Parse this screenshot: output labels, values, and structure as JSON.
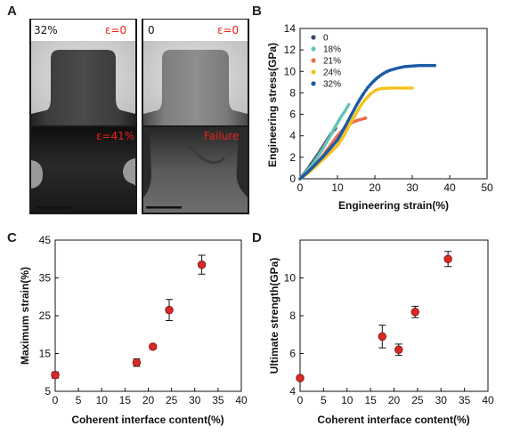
{
  "panel_labels": {
    "a": "A",
    "b": "B",
    "c": "C",
    "d": "D"
  },
  "tem": {
    "top_left_content": "32%",
    "top_left_strain": "ε=0",
    "top_right_content": "0",
    "top_right_strain": "ε=0",
    "bottom_left_strain": "ε=41%",
    "bottom_right_status": "Failure"
  },
  "colors": {
    "0": "#3b4a6b",
    "18": "#66c2b8",
    "21": "#ee6a4c",
    "24": "#f5c21b",
    "32": "#1c5aa3",
    "marker": "#d72b28",
    "tem_label": "#e8231b"
  },
  "chart_data": [
    {
      "type": "scatter",
      "panel": "B",
      "xlabel": "Engineering strain(%)",
      "ylabel": "Engineering stress(GPa)",
      "xlim": [
        0,
        50
      ],
      "ylim": [
        0,
        14
      ],
      "xticks": [
        0,
        10,
        20,
        30,
        40,
        50
      ],
      "yticks": [
        0,
        2,
        4,
        6,
        8,
        10,
        12,
        14
      ],
      "legend_position": "top-left",
      "series": [
        {
          "name": "0",
          "color_key": "0",
          "points": [
            [
              0,
              0
            ],
            [
              1,
              0.45
            ],
            [
              2,
              0.9
            ],
            [
              3,
              1.4
            ],
            [
              4,
              1.9
            ],
            [
              5,
              2.4
            ],
            [
              6,
              2.95
            ],
            [
              7,
              3.5
            ],
            [
              8,
              4.05
            ],
            [
              9,
              4.5
            ],
            [
              9.5,
              4.7
            ]
          ]
        },
        {
          "name": "18%",
          "color_key": "18",
          "points": [
            [
              0,
              0
            ],
            [
              1,
              0.4
            ],
            [
              2,
              0.8
            ],
            [
              3,
              1.2
            ],
            [
              4,
              1.7
            ],
            [
              5,
              2.2
            ],
            [
              6,
              2.75
            ],
            [
              7,
              3.35
            ],
            [
              8,
              3.95
            ],
            [
              9,
              4.6
            ],
            [
              10,
              5.2
            ],
            [
              11,
              5.8
            ],
            [
              12,
              6.3
            ],
            [
              12.5,
              6.6
            ],
            [
              13,
              6.9
            ]
          ]
        },
        {
          "name": "21%",
          "color_key": "21",
          "points": [
            [
              0,
              0
            ],
            [
              1,
              0.3
            ],
            [
              2,
              0.6
            ],
            [
              3,
              0.9
            ],
            [
              4,
              1.3
            ],
            [
              5,
              1.7
            ],
            [
              6,
              2.1
            ],
            [
              7,
              2.6
            ],
            [
              8,
              3.05
            ],
            [
              9,
              3.55
            ],
            [
              10,
              4.0
            ],
            [
              11,
              4.4
            ],
            [
              12,
              4.75
            ],
            [
              13,
              5.0
            ],
            [
              14,
              5.25
            ],
            [
              15,
              5.4
            ],
            [
              16,
              5.5
            ],
            [
              17,
              5.6
            ],
            [
              17.5,
              5.65
            ]
          ]
        },
        {
          "name": "24%",
          "color_key": "24",
          "points": [
            [
              0,
              0
            ],
            [
              2,
              0.5
            ],
            [
              4,
              1.1
            ],
            [
              6,
              1.75
            ],
            [
              8,
              2.4
            ],
            [
              10,
              3.1
            ],
            [
              11,
              3.6
            ],
            [
              12,
              4.2
            ],
            [
              13,
              4.9
            ],
            [
              14,
              5.5
            ],
            [
              15,
              6.1
            ],
            [
              16,
              6.7
            ],
            [
              17,
              7.2
            ],
            [
              18,
              7.6
            ],
            [
              19,
              7.95
            ],
            [
              20,
              8.2
            ],
            [
              21,
              8.35
            ],
            [
              22,
              8.4
            ],
            [
              24,
              8.45
            ],
            [
              26,
              8.45
            ],
            [
              28,
              8.45
            ],
            [
              30,
              8.45
            ]
          ]
        },
        {
          "name": "32%",
          "color_key": "32",
          "points": [
            [
              0,
              0
            ],
            [
              2,
              0.6
            ],
            [
              4,
              1.3
            ],
            [
              6,
              2.0
            ],
            [
              8,
              2.8
            ],
            [
              10,
              3.6
            ],
            [
              11,
              4.2
            ],
            [
              12,
              4.85
            ],
            [
              13,
              5.5
            ],
            [
              14,
              6.15
            ],
            [
              15,
              6.8
            ],
            [
              16,
              7.4
            ],
            [
              17,
              7.95
            ],
            [
              18,
              8.45
            ],
            [
              19,
              8.85
            ],
            [
              20,
              9.2
            ],
            [
              21,
              9.5
            ],
            [
              22,
              9.75
            ],
            [
              23,
              9.95
            ],
            [
              24,
              10.1
            ],
            [
              26,
              10.3
            ],
            [
              28,
              10.45
            ],
            [
              30,
              10.5
            ],
            [
              32,
              10.55
            ],
            [
              34,
              10.55
            ],
            [
              36,
              10.55
            ]
          ]
        }
      ]
    },
    {
      "type": "scatter",
      "panel": "C",
      "xlabel": "Coherent interface content(%)",
      "ylabel": "Maximum strain(%)",
      "xlim": [
        0,
        40
      ],
      "ylim": [
        5,
        45
      ],
      "xticks": [
        0,
        5,
        10,
        15,
        20,
        25,
        30,
        35,
        40
      ],
      "yticks": [
        5,
        15,
        25,
        35,
        45
      ],
      "points": [
        {
          "x": 0,
          "y": 9.3,
          "err": 0.8
        },
        {
          "x": 17.5,
          "y": 12.6,
          "err": 1.0
        },
        {
          "x": 21,
          "y": 16.8,
          "err": 0.5
        },
        {
          "x": 24.5,
          "y": 26.5,
          "err": 2.8
        },
        {
          "x": 31.5,
          "y": 38.5,
          "err": 2.5
        }
      ]
    },
    {
      "type": "scatter",
      "panel": "D",
      "xlabel": "Coherent interface content(%)",
      "ylabel": "Ultimate strength(GPa)",
      "xlim": [
        0,
        40
      ],
      "ylim": [
        4,
        12
      ],
      "xticks": [
        0,
        5,
        10,
        15,
        20,
        25,
        30,
        35,
        40
      ],
      "yticks": [
        4,
        6,
        8,
        10,
        12
      ],
      "ytick_labels": [
        "4",
        "6",
        "8",
        "10",
        ""
      ],
      "points": [
        {
          "x": 0,
          "y": 4.7,
          "err": 0.08
        },
        {
          "x": 17.5,
          "y": 6.9,
          "err": 0.6
        },
        {
          "x": 21,
          "y": 6.2,
          "err": 0.3
        },
        {
          "x": 24.5,
          "y": 8.2,
          "err": 0.3
        },
        {
          "x": 31.5,
          "y": 11.0,
          "err": 0.4
        }
      ]
    }
  ]
}
